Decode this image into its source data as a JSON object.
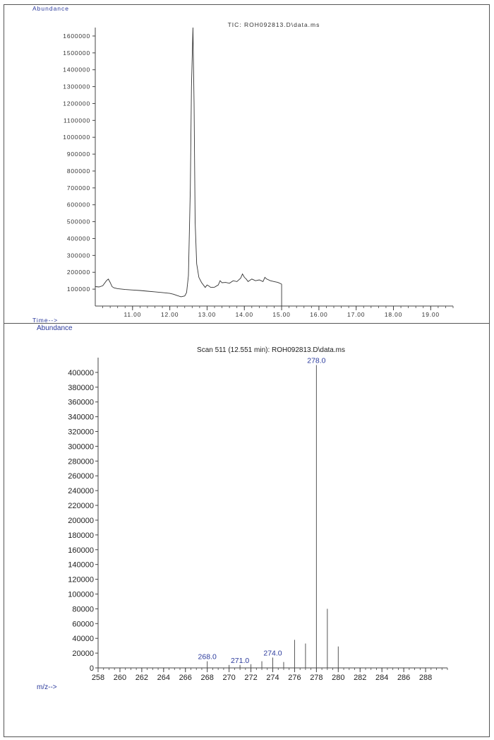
{
  "chart_data": [
    {
      "type": "line",
      "title": "TIC: ROH092813.D\\data.ms",
      "ylabel": "Abundance",
      "xlabel": "Time-->",
      "xlim": [
        10.0,
        19.6
      ],
      "ylim": [
        0,
        1650000
      ],
      "y_ticks": [
        100000,
        200000,
        300000,
        400000,
        500000,
        600000,
        700000,
        800000,
        900000,
        1000000,
        1100000,
        1200000,
        1300000,
        1400000,
        1500000,
        1600000
      ],
      "y_tick_labels": [
        "100000",
        "200000",
        "300000",
        "400000",
        "500000",
        "600000",
        "700000",
        "800000",
        "900000",
        "1000000",
        "1100000",
        "1200000",
        "1300000",
        "1400000",
        "1500000",
        "1600000"
      ],
      "x_ticks": [
        11,
        12,
        13,
        14,
        15,
        16,
        17,
        18,
        19
      ],
      "x_tick_labels": [
        "11.00",
        "12.00",
        "13.00",
        "14.00",
        "15.00",
        "16.00",
        "17.00",
        "18.00",
        "19.00"
      ],
      "series": [
        {
          "x": [
            10.0,
            10.1,
            10.2,
            10.3,
            10.35,
            10.4,
            10.45,
            10.5,
            10.6,
            10.8,
            11.0,
            11.2,
            11.4,
            11.6,
            11.8,
            12.0,
            12.1,
            12.2,
            12.3,
            12.4,
            12.45,
            12.5,
            12.55,
            12.58,
            12.62,
            12.65,
            12.68,
            12.72,
            12.78,
            12.85,
            12.95,
            13.0,
            13.05,
            13.1,
            13.2,
            13.3,
            13.35,
            13.4,
            13.5,
            13.6,
            13.7,
            13.8,
            13.9,
            13.95,
            14.0,
            14.05,
            14.1,
            14.2,
            14.3,
            14.4,
            14.5,
            14.55,
            14.6,
            14.7,
            14.8,
            14.9,
            15.0
          ],
          "y": [
            115000,
            113000,
            120000,
            150000,
            160000,
            140000,
            115000,
            108000,
            103000,
            98000,
            95000,
            92000,
            88000,
            84000,
            80000,
            75000,
            70000,
            62000,
            55000,
            60000,
            80000,
            180000,
            700000,
            1300000,
            1650000,
            1200000,
            500000,
            250000,
            170000,
            140000,
            110000,
            125000,
            118000,
            110000,
            112000,
            125000,
            150000,
            138000,
            140000,
            135000,
            150000,
            145000,
            165000,
            190000,
            170000,
            160000,
            145000,
            160000,
            150000,
            155000,
            145000,
            170000,
            160000,
            150000,
            145000,
            140000,
            130000
          ]
        }
      ]
    },
    {
      "type": "bar",
      "title": "Scan 511 (12.551 min): ROH092813.D\\data.ms",
      "ylabel": "Abundance",
      "xlabel": "m/z-->",
      "xlim": [
        258,
        290
      ],
      "ylim": [
        0,
        420000
      ],
      "y_ticks": [
        0,
        20000,
        40000,
        60000,
        80000,
        100000,
        120000,
        140000,
        160000,
        180000,
        200000,
        220000,
        240000,
        260000,
        280000,
        300000,
        320000,
        340000,
        360000,
        380000,
        400000
      ],
      "y_tick_labels": [
        "0",
        "20000",
        "40000",
        "60000",
        "80000",
        "100000",
        "120000",
        "140000",
        "160000",
        "180000",
        "200000",
        "220000",
        "240000",
        "260000",
        "280000",
        "300000",
        "320000",
        "340000",
        "360000",
        "380000",
        "400000"
      ],
      "x_ticks": [
        258,
        260,
        262,
        264,
        266,
        268,
        270,
        272,
        274,
        276,
        278,
        280,
        282,
        284,
        286,
        288
      ],
      "x_tick_labels": [
        "258",
        "260",
        "262",
        "264",
        "266",
        "268",
        "270",
        "272",
        "274",
        "276",
        "278",
        "280",
        "282",
        "284",
        "286",
        "288"
      ],
      "peaks": [
        {
          "mz": 268.0,
          "abundance": 9000,
          "label": "268.0"
        },
        {
          "mz": 270.0,
          "abundance": 4000,
          "label": ""
        },
        {
          "mz": 271.0,
          "abundance": 4000,
          "label": "271.0"
        },
        {
          "mz": 272.0,
          "abundance": 5000,
          "label": ""
        },
        {
          "mz": 273.0,
          "abundance": 9000,
          "label": ""
        },
        {
          "mz": 274.0,
          "abundance": 14000,
          "label": "274.0"
        },
        {
          "mz": 275.0,
          "abundance": 8000,
          "label": ""
        },
        {
          "mz": 276.0,
          "abundance": 38000,
          "label": ""
        },
        {
          "mz": 277.0,
          "abundance": 33000,
          "label": ""
        },
        {
          "mz": 278.0,
          "abundance": 410000,
          "label": "278.0"
        },
        {
          "mz": 279.0,
          "abundance": 80000,
          "label": ""
        },
        {
          "mz": 280.0,
          "abundance": 29000,
          "label": ""
        }
      ]
    }
  ]
}
